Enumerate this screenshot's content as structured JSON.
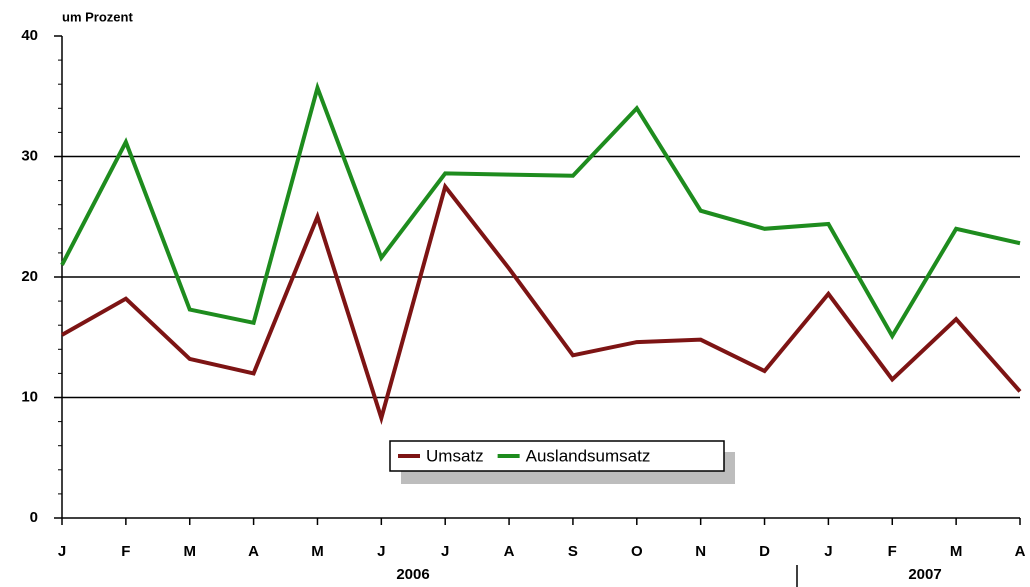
{
  "chart_data": {
    "type": "line",
    "y_label": "um Prozent",
    "categories": [
      "J",
      "F",
      "M",
      "A",
      "M",
      "J",
      "J",
      "A",
      "S",
      "O",
      "N",
      "D",
      "J",
      "F",
      "M",
      "A"
    ],
    "years": [
      "2006",
      "2007"
    ],
    "series": [
      {
        "name": "Umsatz",
        "color": "#7d1414",
        "values": [
          15.2,
          18.2,
          13.2,
          12.0,
          25.0,
          8.3,
          27.5,
          20.7,
          13.5,
          14.6,
          14.8,
          12.2,
          18.6,
          11.5,
          16.5,
          10.5
        ]
      },
      {
        "name": "Auslandsumsatz",
        "color": "#1e8c1e",
        "values": [
          21.0,
          31.2,
          17.3,
          16.2,
          35.7,
          21.6,
          28.6,
          28.5,
          28.4,
          34.0,
          25.5,
          24.0,
          24.4,
          15.1,
          24.0,
          22.8
        ]
      }
    ],
    "ylim": [
      0,
      40
    ],
    "yticks": [
      0,
      10,
      20,
      30,
      40
    ],
    "grid": true
  }
}
